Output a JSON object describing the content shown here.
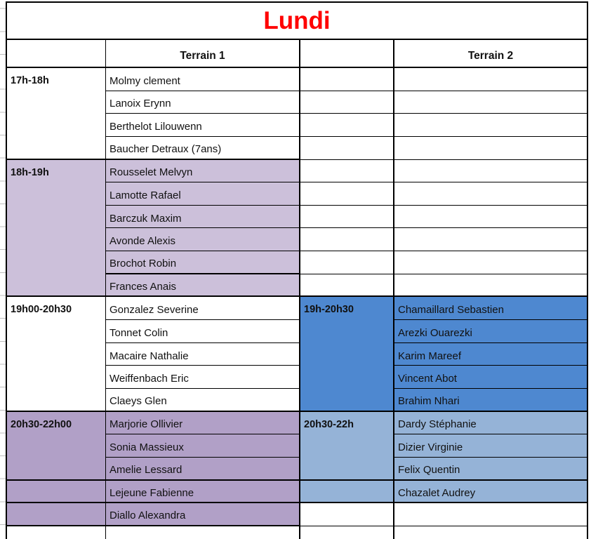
{
  "title": "Lundi",
  "colors": {
    "title_red": "#ff0000",
    "purple_light": "#ccc0da",
    "purple_dark": "#b1a0c7",
    "blue_medium": "#4e88d0",
    "blue_light": "#95b3d7",
    "grid_black": "#000000"
  },
  "headers": {
    "terrain1": "Terrain 1",
    "terrain2": "Terrain 2"
  },
  "terrain1": {
    "slots": [
      {
        "time": "17h-18h",
        "players": [
          "Molmy clement",
          "Lanoix Erynn",
          "Berthelot Lilouwenn",
          "Baucher Detraux (7ans)"
        ]
      },
      {
        "time": "18h-19h",
        "players": [
          "Rousselet Melvyn",
          "Lamotte Rafael",
          "Barczuk Maxim",
          "Avonde Alexis",
          "Brochot Robin",
          "Frances Anais"
        ]
      },
      {
        "time": "19h00-20h30",
        "players": [
          "Gonzalez Severine",
          "Tonnet Colin",
          "Macaire Nathalie",
          "Weiffenbach Eric",
          "Claeys Glen"
        ]
      },
      {
        "time": "20h30-22h00",
        "players": [
          "Marjorie Ollivier",
          "Sonia Massieux",
          "Amelie Lessard",
          "Lejeune Fabienne",
          "Diallo Alexandra"
        ]
      }
    ]
  },
  "terrain2": {
    "slots": [
      {
        "time": "19h-20h30",
        "players": [
          "Chamaillard Sebastien",
          "Arezki Ouarezki",
          "Karim Mareef",
          "Vincent Abot",
          "Brahim Nhari"
        ]
      },
      {
        "time": "20h30-22h",
        "players": [
          "Dardy Stéphanie",
          "Dizier Virginie",
          "Felix Quentin",
          "Chazalet Audrey"
        ]
      }
    ]
  }
}
